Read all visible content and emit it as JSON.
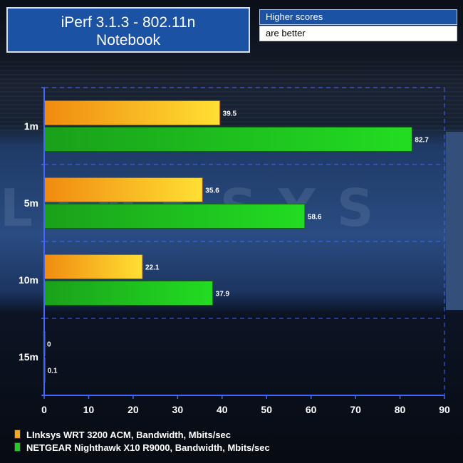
{
  "header": {
    "title_line1": "iPerf 3.1.3 - 802.11n",
    "title_line2": "Notebook",
    "note_line1": "Higher scores",
    "note_line2": "are better"
  },
  "background_watermark": "LINKSYS",
  "chart_data": {
    "type": "bar",
    "orientation": "horizontal",
    "categories": [
      "1m",
      "5m",
      "10m",
      "15m"
    ],
    "series": [
      {
        "name": "LInksys WRT 3200 ACM, Bandwidth, Mbits/sec",
        "values": [
          39.5,
          35.6,
          22.1,
          0
        ],
        "color_start": "#f08a10",
        "color_end": "#ffe033"
      },
      {
        "name": "NETGEAR Nighthawk X10 R9000, Bandwidth, Mbits/sec",
        "values": [
          82.7,
          58.6,
          37.9,
          0.1
        ],
        "color_start": "#1aa01a",
        "color_end": "#22dd22"
      }
    ],
    "data_labels": [
      [
        "39.5",
        "35.6",
        "22.1",
        "0"
      ],
      [
        "82.7",
        "58.6",
        "37.9",
        "0.1"
      ]
    ],
    "xlim": [
      0,
      90
    ],
    "xticks": [
      "0",
      "10",
      "20",
      "30",
      "40",
      "50",
      "60",
      "70",
      "80",
      "90"
    ],
    "grid": true,
    "legend_position": "bottom-left",
    "colors": {
      "axis": "#4466ff",
      "grid": "#4466ff",
      "text": "#ffffff"
    }
  }
}
